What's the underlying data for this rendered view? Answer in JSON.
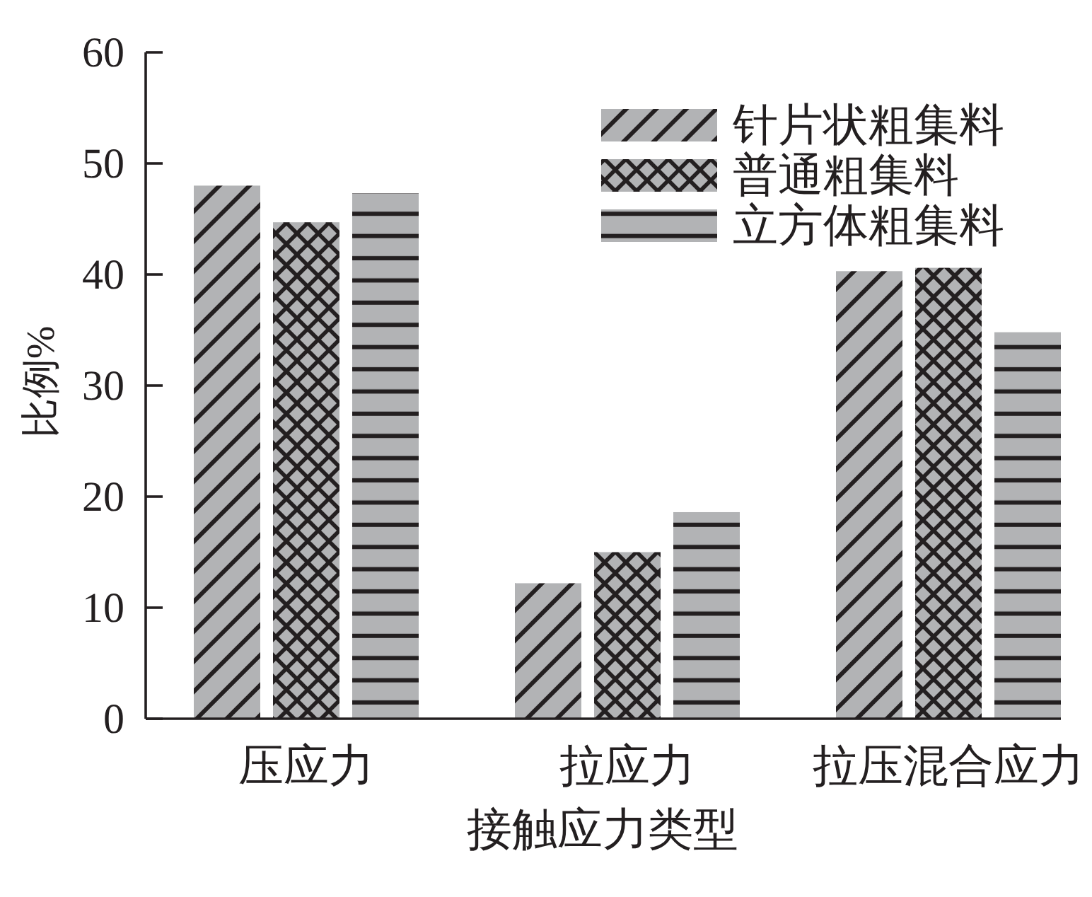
{
  "chart_data": {
    "type": "bar",
    "xlabel": "接触应力类型",
    "ylabel": "比例%",
    "categories": [
      "压应力",
      "拉应力",
      "拉压混合应力"
    ],
    "series": [
      {
        "name": "针片状粗集料",
        "color": "#b2b3b5",
        "values": [
          48,
          12.2,
          40.3
        ]
      },
      {
        "name": "普通粗集料",
        "color": "#b2b3b5",
        "values": [
          44.7,
          15,
          40.6
        ]
      },
      {
        "name": "立方体粗集料",
        "color": "#b2b3b5",
        "values": [
          47.3,
          18.6,
          34.8
        ]
      }
    ],
    "ylim": [
      0,
      60
    ],
    "yticks": [
      0,
      10,
      20,
      30,
      40,
      50,
      60
    ],
    "legend": "top right"
  }
}
